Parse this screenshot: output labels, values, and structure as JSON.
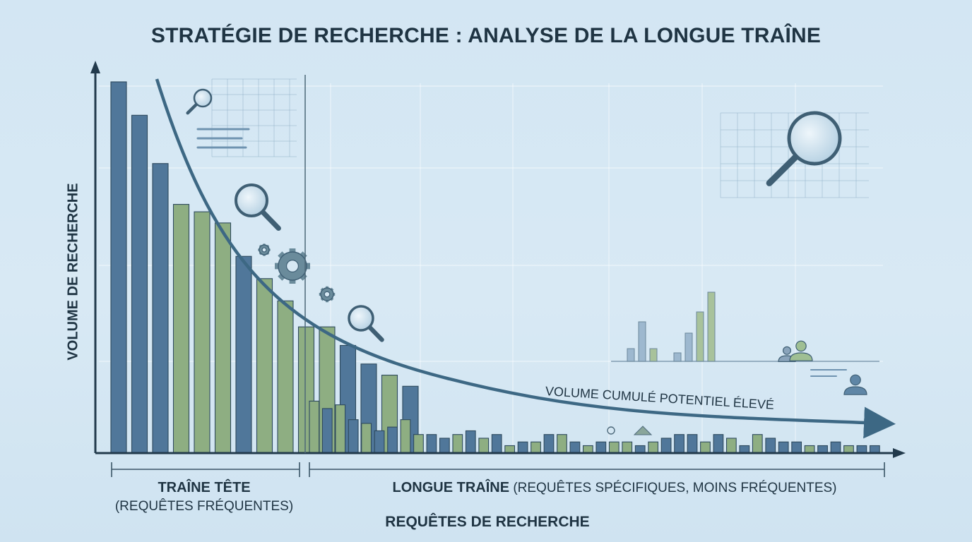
{
  "title": "STRATÉGIE DE RECHERCHE : ANALYSE DE LA LONGUE TRAÎNE",
  "colors": {
    "blue_bar": "#50779a",
    "green_bar": "#8eae82",
    "axis": "#223a4c",
    "curve": "#3d6884"
  },
  "chart_data": {
    "type": "bar",
    "title": "STRATÉGIE DE RECHERCHE : ANALYSE DE LA LONGUE TRAÎNE",
    "xlabel": "REQUÊTES DE RECHERCHE",
    "ylabel": "VOLUME DE RECHERCHE",
    "ylim": [
      0,
      100
    ],
    "grid": true,
    "values": [
      100,
      91,
      78,
      67,
      65,
      62,
      53,
      47,
      41,
      34,
      34,
      29,
      24,
      21,
      18,
      14,
      12,
      13,
      9,
      8,
      6,
      7,
      9,
      5,
      5,
      4,
      5,
      6,
      4,
      5,
      2,
      3,
      3,
      5,
      5,
      3,
      2,
      3,
      3,
      3,
      2,
      3,
      4,
      5,
      5,
      3,
      5,
      4,
      2,
      5,
      4,
      3,
      3,
      2,
      2,
      3,
      2,
      2,
      2
    ],
    "colors": [
      "b",
      "b",
      "b",
      "g",
      "g",
      "g",
      "b",
      "g",
      "g",
      "g",
      "g",
      "b",
      "b",
      "g",
      "b",
      "g",
      "b",
      "g",
      "b",
      "g",
      "b",
      "b",
      "g",
      "g",
      "b",
      "b",
      "g",
      "b",
      "g",
      "b",
      "g",
      "b",
      "g",
      "b",
      "g",
      "b",
      "g",
      "b",
      "g",
      "g",
      "b",
      "g",
      "b",
      "b",
      "b",
      "g",
      "b",
      "g",
      "b",
      "g",
      "b",
      "b",
      "b",
      "g",
      "b",
      "b",
      "g",
      "b",
      "b"
    ],
    "head_count": 15,
    "curve": {
      "label": "VOLUME CUMULÉ POTENTIEL ÉLEVÉ"
    },
    "segments": [
      {
        "name": "TRAÎNE TÊTE",
        "detail": "(REQUÊTES FRÉQUENTES)"
      },
      {
        "name": "LONGUE TRAÎNE",
        "detail": "(REQUÊTES SPÉCIFIQUES, MOINS FRÉQUENTES)"
      }
    ]
  },
  "icons": [
    "magnifier-icon",
    "gear-icon",
    "user-icon",
    "users-icon",
    "mini-bar-chart-icon",
    "lamp-icon"
  ]
}
